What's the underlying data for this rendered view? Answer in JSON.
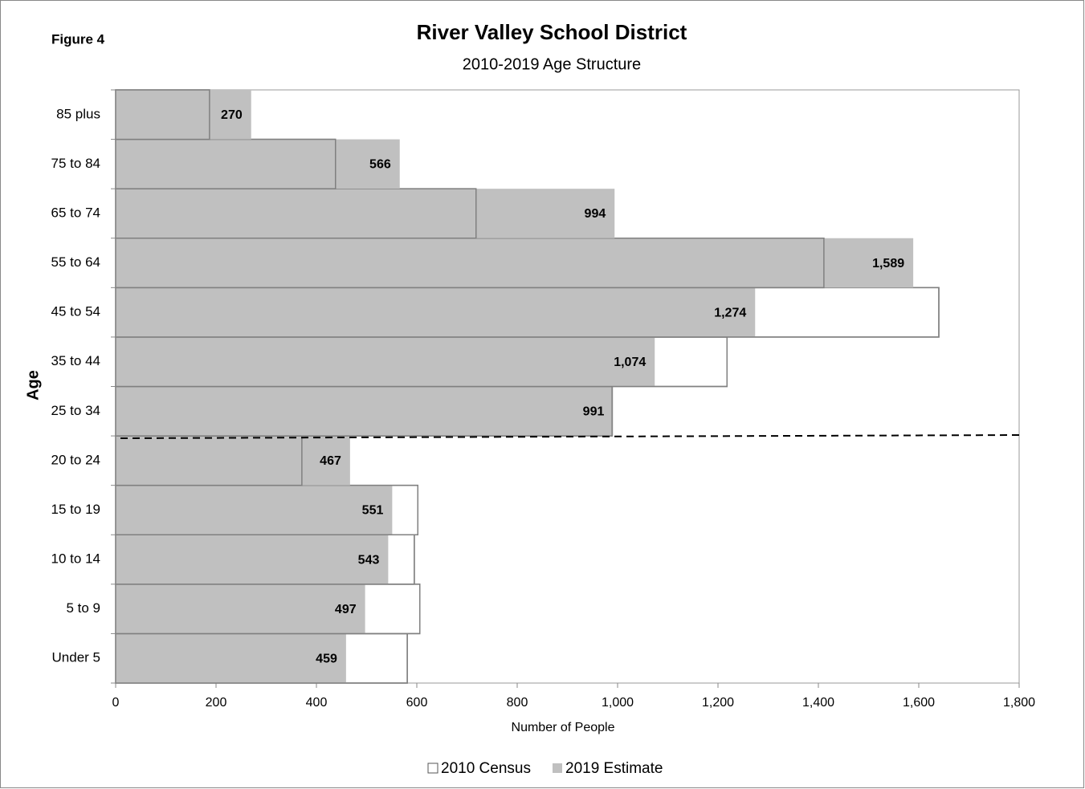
{
  "chart_data": {
    "type": "barh",
    "figure_label": "Figure 4",
    "title": "River Valley School District",
    "subtitle": "2010-2019 Age Structure",
    "x_label": "Number of People",
    "y_label": "Age",
    "categories": [
      "Under 5",
      "5 to 9",
      "10 to 14",
      "15 to 19",
      "20 to 24",
      "25 to 34",
      "35 to 44",
      "45 to 54",
      "55 to 64",
      "65 to 74",
      "75 to 84",
      "85 plus"
    ],
    "series": [
      {
        "name": "2010 Census",
        "color": "#ffffff",
        "values": [
          581,
          606,
          595,
          602,
          371,
          989,
          1218,
          1640,
          1411,
          718,
          438,
          187
        ]
      },
      {
        "name": "2019 Estimate",
        "color": "#c0c0c0",
        "values": [
          459,
          497,
          543,
          551,
          467,
          991,
          1074,
          1274,
          1589,
          994,
          566,
          270
        ],
        "value_labels": [
          "459",
          "497",
          "543",
          "551",
          "467",
          "991",
          "1,074",
          "1,274",
          "1,589",
          "994",
          "566",
          "270"
        ]
      }
    ],
    "xlim": [
      0,
      1800
    ],
    "xticks": [
      0,
      200,
      400,
      600,
      800,
      {
        "value": 1000,
        "label": "1,000"
      },
      {
        "value": 1200,
        "label": "1,200"
      },
      {
        "value": 1400,
        "label": "1,400"
      },
      {
        "value": 1600,
        "label": "1,600"
      },
      {
        "value": 1800,
        "label": "1,800"
      }
    ],
    "legend": "bottom"
  }
}
